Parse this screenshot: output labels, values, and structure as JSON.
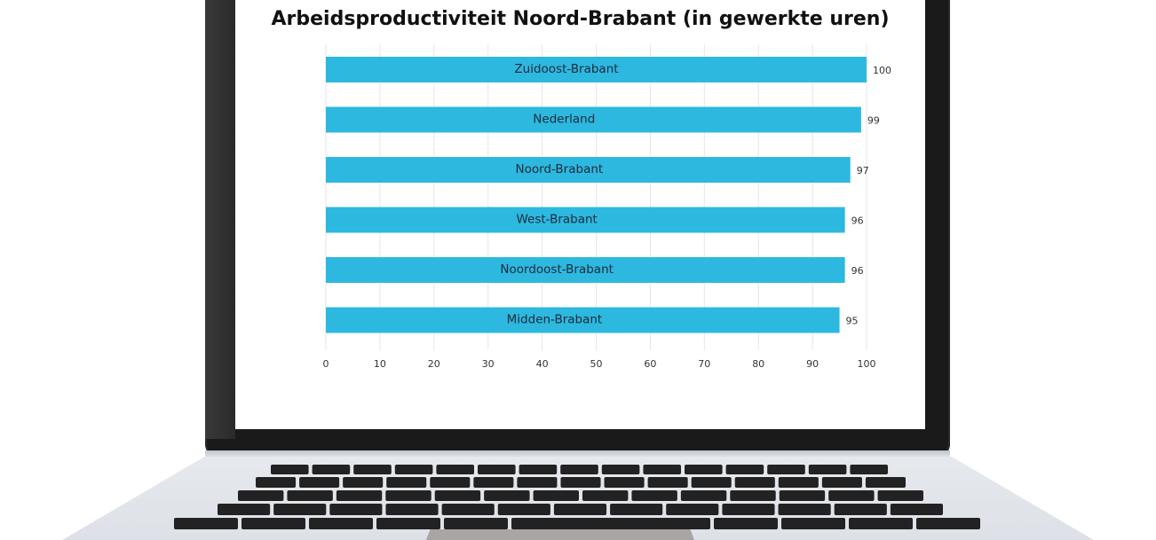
{
  "chart_data": {
    "type": "bar",
    "orientation": "horizontal",
    "title": "Arbeidsproductiviteit Noord-Brabant (in gewerkte uren)",
    "categories": [
      "Zuidoost-Brabant",
      "Nederland",
      "Noord-Brabant",
      "West-Brabant",
      "Noordoost-Brabant",
      "Midden-Brabant"
    ],
    "values": [
      100,
      99,
      97,
      96,
      96,
      95
    ],
    "xlim": [
      0,
      100
    ],
    "xticks": [
      0,
      10,
      20,
      30,
      40,
      50,
      60,
      70,
      80,
      90,
      100
    ],
    "grid": true,
    "bar_color": "#2db8e0",
    "data_labels": true
  },
  "colors": {
    "bezel": "#1a1a1a",
    "screen": "#ffffff",
    "laptop_base": "#e3e6eb",
    "key": "#222222"
  }
}
